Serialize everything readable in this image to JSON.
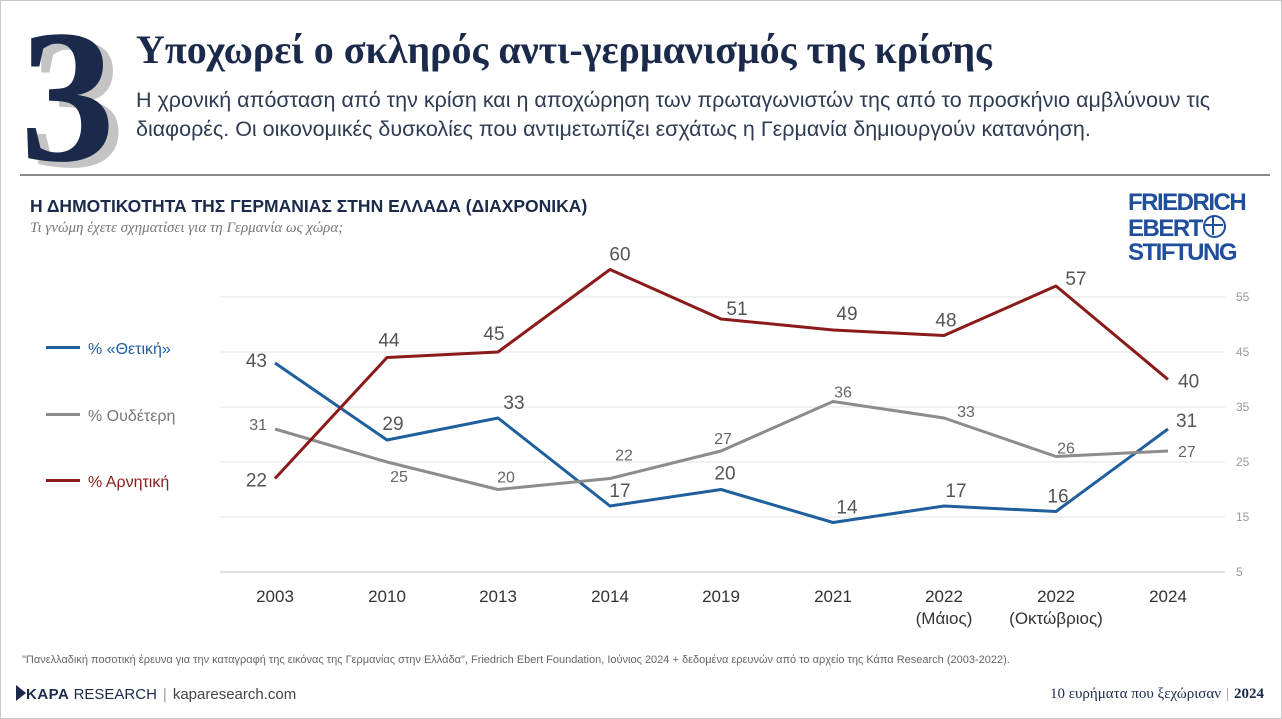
{
  "header": {
    "number": "3",
    "title": "Υποχωρεί ο σκληρός αντι-γερμανισμός της κρίσης",
    "subtitle": "Η χρονική απόσταση από την κρίση και η αποχώρηση των πρωταγωνιστών της από το προσκήνιο αμβλύνουν τις διαφορές. Οι οικονομικές δυσκολίες που αντιμετωπίζει εσχάτως η Γερμανία δημιουργούν κατανόηση."
  },
  "logo": {
    "line1": "FRIEDRICH",
    "line2": "EBERT",
    "line3": "STIFTUNG"
  },
  "chart_data": {
    "type": "line",
    "title": "Η ΔΗΜΟΤΙΚΟΤΗΤΑ ΤΗΣ ΓΕΡΜΑΝΙΑΣ ΣΤΗΝ ΕΛΛΑΔΑ (ΔΙΑΧΡΟΝΙΚΑ)",
    "subtitle": "Τι γνώμη έχετε σχηματίσει για τη Γερμανία ως χώρα;",
    "categories": [
      {
        "line1": "2003",
        "line2": ""
      },
      {
        "line1": "2010",
        "line2": ""
      },
      {
        "line1": "2013",
        "line2": ""
      },
      {
        "line1": "2014",
        "line2": ""
      },
      {
        "line1": "2019",
        "line2": ""
      },
      {
        "line1": "2021",
        "line2": ""
      },
      {
        "line1": "2022",
        "line2": "(Μάιος)"
      },
      {
        "line1": "2022",
        "line2": "(Οκτώβριος)"
      },
      {
        "line1": "2024",
        "line2": ""
      }
    ],
    "series": [
      {
        "name": "% «Θετική»",
        "color": "#1f5f9e",
        "values": [
          43,
          29,
          33,
          17,
          20,
          14,
          17,
          16,
          31
        ]
      },
      {
        "name": "% Ουδέτερη",
        "color": "#8c8c8c",
        "values": [
          31,
          25,
          20,
          22,
          27,
          36,
          33,
          26,
          27
        ]
      },
      {
        "name": "% Αρνητική",
        "color": "#8b1a1a",
        "values": [
          22,
          44,
          45,
          60,
          51,
          49,
          48,
          57,
          40
        ]
      }
    ],
    "y_ticks": [
      5,
      15,
      25,
      35,
      45,
      55
    ],
    "ylim": [
      5,
      60
    ],
    "y_axis_side": "right",
    "grid": true,
    "legend_position": "left"
  },
  "footer": {
    "source": "\"Πανελλαδική ποσοτική έρευνα για την καταγραφή της εικόνας της Γερμανίας στην Ελλάδα\", Friedrich Ebert Foundation, Ιούνιος 2024 + δεδομένα ερευνών από το αρχείο της Κάπα Research (2003-2022).",
    "brand_bold": "ΚΑΡΑ",
    "brand_rest": "RESEARCH",
    "separator": "|",
    "url": "kaparesearch.com",
    "series_label": "10 ευρήματα που ξεχώρισαν",
    "year": "2024"
  }
}
